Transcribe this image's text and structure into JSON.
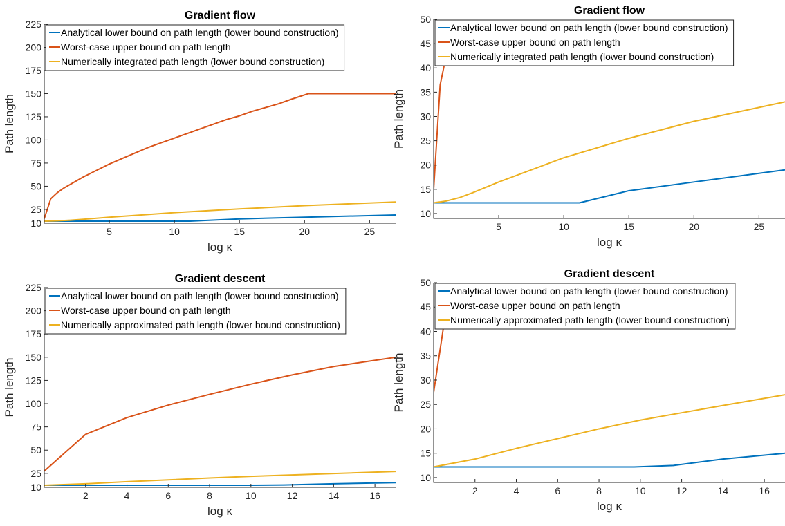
{
  "chart_data": [
    {
      "type": "line",
      "title": "Gradient flow",
      "xlabel": "log κ",
      "ylabel": "Path length",
      "xlim": [
        0,
        27
      ],
      "ylim": [
        10,
        225
      ],
      "xticks": [
        5,
        10,
        15,
        20,
        25
      ],
      "yticks": [
        10,
        25,
        50,
        75,
        100,
        125,
        150,
        175,
        200,
        225
      ],
      "legend_position": "top-left",
      "series": [
        {
          "name": "Analytical lower bound on path length (lower bound construction)",
          "color": "#0072BD",
          "x": [
            0,
            11.2,
            15,
            20,
            27
          ],
          "y": [
            12.2,
            12.2,
            14.7,
            16.5,
            19
          ]
        },
        {
          "name": "Worst-case upper bound on path length",
          "color": "#D95319",
          "x": [
            0,
            0.5,
            1,
            1.5,
            2,
            3,
            4,
            5,
            6,
            7,
            8,
            9,
            10,
            11,
            12,
            13,
            14,
            15,
            16,
            17,
            18,
            19,
            20.3,
            27
          ],
          "y": [
            15,
            36.5,
            43,
            48,
            52,
            60,
            67,
            74,
            80,
            86,
            92,
            97,
            102,
            107,
            112,
            117,
            122,
            126,
            131,
            135,
            139,
            144,
            150,
            150
          ]
        },
        {
          "name": "Numerically integrated path length (lower bound construction)",
          "color": "#EDB120",
          "x": [
            0,
            1,
            2,
            3,
            5,
            7,
            10,
            15,
            20,
            27
          ],
          "y": [
            12.2,
            12.6,
            13.3,
            14.3,
            16.5,
            18.5,
            21.5,
            25.5,
            29,
            33
          ]
        }
      ]
    },
    {
      "type": "line",
      "title": "Gradient flow",
      "xlabel": "log κ",
      "ylabel": "Path length",
      "xlim": [
        0,
        27
      ],
      "ylim": [
        9,
        50
      ],
      "xticks": [
        5,
        10,
        15,
        20,
        25
      ],
      "yticks": [
        10,
        15,
        20,
        25,
        30,
        35,
        40,
        45,
        50
      ],
      "legend_position": "top-left",
      "series": [
        {
          "name": "Analytical lower bound on path length (lower bound construction)",
          "color": "#0072BD",
          "x": [
            0,
            11.2,
            15,
            20,
            27
          ],
          "y": [
            12.2,
            12.2,
            14.7,
            16.5,
            19
          ]
        },
        {
          "name": "Worst-case upper bound on path length",
          "color": "#D95319",
          "x": [
            0,
            0.5,
            1,
            1.5
          ],
          "y": [
            15,
            36.5,
            43,
            48
          ]
        },
        {
          "name": "Numerically integrated path length (lower bound construction)",
          "color": "#EDB120",
          "x": [
            0,
            1,
            2,
            3,
            5,
            7,
            10,
            15,
            20,
            27
          ],
          "y": [
            12.2,
            12.6,
            13.3,
            14.3,
            16.5,
            18.5,
            21.5,
            25.5,
            29,
            33
          ]
        }
      ]
    },
    {
      "type": "line",
      "title": "Gradient descent",
      "xlabel": "log κ",
      "ylabel": "Path length",
      "xlim": [
        0,
        17
      ],
      "ylim": [
        10,
        225
      ],
      "xticks": [
        2,
        4,
        6,
        8,
        10,
        12,
        14,
        16
      ],
      "yticks": [
        10,
        25,
        50,
        75,
        100,
        125,
        150,
        175,
        200,
        225
      ],
      "legend_position": "top-left",
      "series": [
        {
          "name": "Analytical lower bound on path length (lower bound construction)",
          "color": "#0072BD",
          "x": [
            0,
            2,
            4,
            6,
            8,
            10,
            11.6,
            14,
            17
          ],
          "y": [
            12.2,
            12.2,
            12.2,
            12.2,
            12.2,
            12.2,
            12.5,
            13.8,
            15
          ]
        },
        {
          "name": "Worst-case upper bound on path length",
          "color": "#D95319",
          "x": [
            0,
            2,
            4,
            6,
            8,
            10,
            12,
            14,
            17
          ],
          "y": [
            27.5,
            67,
            85,
            98.5,
            110,
            121,
            131,
            140,
            150
          ]
        },
        {
          "name": "Numerically approximated path length (lower bound construction)",
          "color": "#EDB120",
          "x": [
            0,
            2,
            4,
            6,
            8,
            10,
            12,
            14,
            17
          ],
          "y": [
            12.2,
            13.8,
            16,
            18,
            20,
            21.8,
            23.3,
            24.8,
            27
          ]
        }
      ]
    },
    {
      "type": "line",
      "title": "Gradient descent",
      "xlabel": "log κ",
      "ylabel": "Path length",
      "xlim": [
        0,
        17
      ],
      "ylim": [
        9,
        50
      ],
      "xticks": [
        2,
        4,
        6,
        8,
        10,
        12,
        14,
        16
      ],
      "yticks": [
        10,
        15,
        20,
        25,
        30,
        35,
        40,
        45,
        50
      ],
      "legend_position": "top-left",
      "series": [
        {
          "name": "Analytical lower bound on path length (lower bound construction)",
          "color": "#0072BD",
          "x": [
            0,
            2,
            4,
            6,
            8,
            9.7,
            11.6,
            14,
            17
          ],
          "y": [
            12.2,
            12.2,
            12.2,
            12.2,
            12.2,
            12.2,
            12.5,
            13.8,
            15
          ]
        },
        {
          "name": "Worst-case upper bound on path length",
          "color": "#D95319",
          "x": [
            0,
            0.8
          ],
          "y": [
            27.5,
            50
          ]
        },
        {
          "name": "Numerically approximated path length (lower bound construction)",
          "color": "#EDB120",
          "x": [
            0,
            2,
            4,
            6,
            8,
            10,
            12,
            14,
            17
          ],
          "y": [
            12.2,
            13.8,
            16,
            18,
            20,
            21.8,
            23.3,
            24.8,
            27
          ]
        }
      ]
    }
  ]
}
